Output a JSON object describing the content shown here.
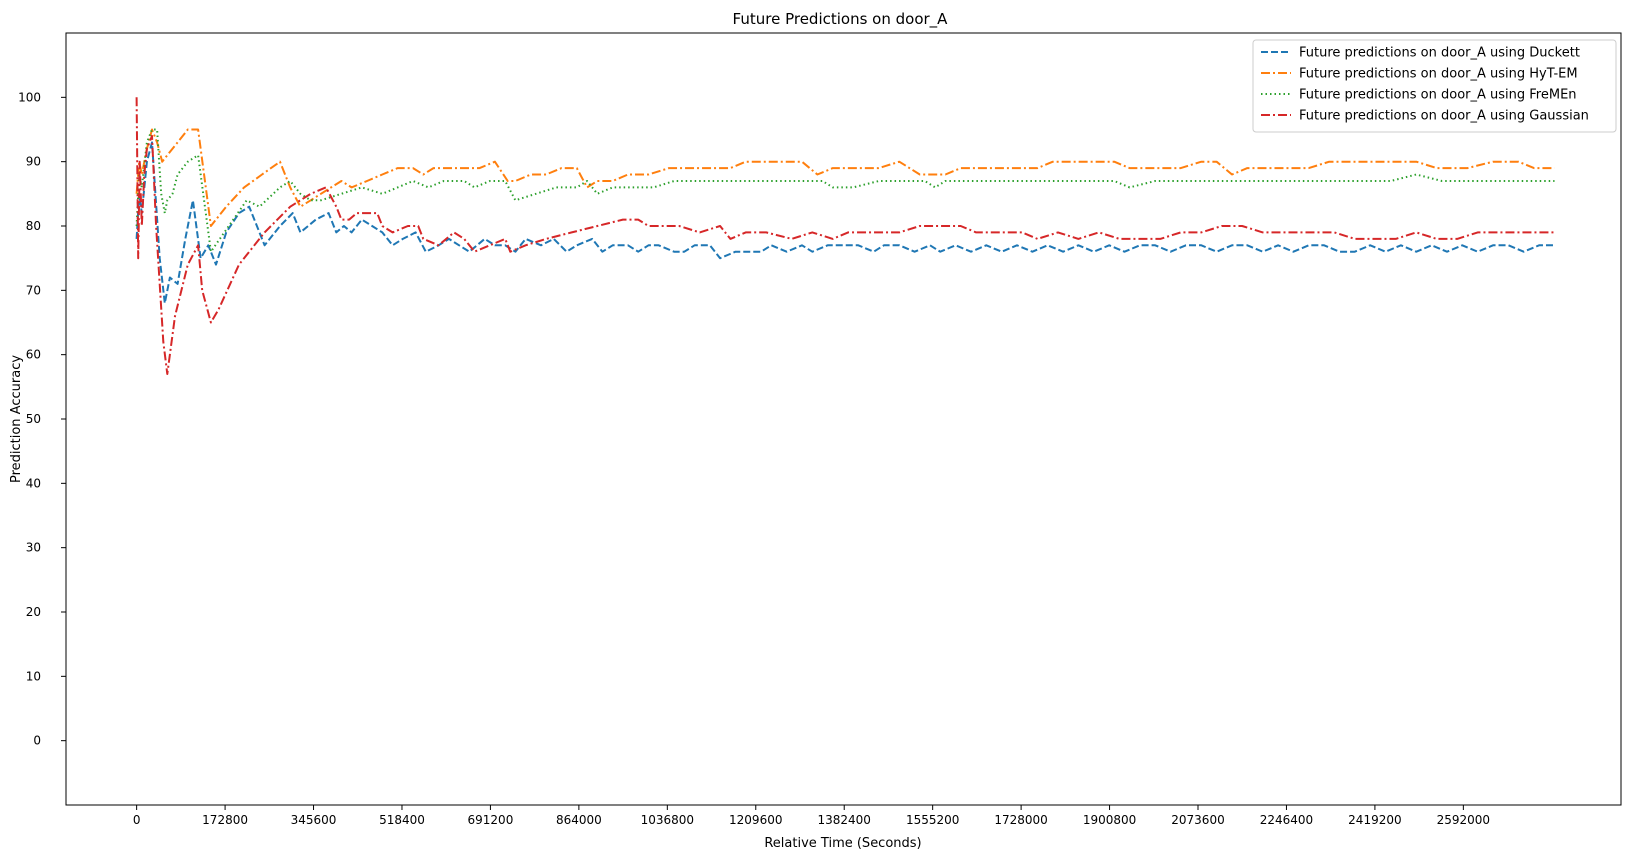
{
  "chart_data": {
    "type": "line",
    "title": "Future Predictions on door_A",
    "xlabel": "Relative Time (Seconds)",
    "ylabel": "Prediction Accuracy",
    "xlim": [
      -138000,
      2900000
    ],
    "ylim": [
      -10,
      110
    ],
    "xticks": [
      0,
      172800,
      345600,
      518400,
      691200,
      864000,
      1036800,
      1209600,
      1382400,
      1555200,
      1728000,
      1900800,
      2073600,
      2246400,
      2419200,
      2592000
    ],
    "xtick_labels": [
      "0",
      "172800",
      "345600",
      "518400",
      "691200",
      "864000",
      "1036800",
      "1209600",
      "1382400",
      "1555200",
      "1728000",
      "1900800",
      "2073600",
      "2246400",
      "2419200",
      "2592000"
    ],
    "yticks": [
      0,
      10,
      20,
      30,
      40,
      50,
      60,
      70,
      80,
      90,
      100
    ],
    "ytick_labels": [
      "0",
      "10",
      "20",
      "30",
      "40",
      "50",
      "60",
      "70",
      "80",
      "90",
      "100"
    ],
    "grid": false,
    "legend_position": "top-right",
    "series": [
      {
        "name": "Future predictions on door_A using Duckett",
        "color": "#1f77b4",
        "dash": "dashed",
        "x": [
          0,
          5000,
          10000,
          20000,
          30000,
          45000,
          55000,
          65000,
          80000,
          95000,
          110000,
          125000,
          140000,
          155000,
          175000,
          200000,
          220000,
          250000,
          280000,
          305000,
          320000,
          350000,
          375000,
          390000,
          405000,
          420000,
          440000,
          460000,
          480000,
          500000,
          520000,
          545000,
          565000,
          590000,
          610000,
          630000,
          650000,
          680000,
          700000,
          720000,
          740000,
          760000,
          790000,
          815000,
          840000,
          860000,
          890000,
          910000,
          930000,
          960000,
          980000,
          1000000,
          1020000,
          1050000,
          1070000,
          1090000,
          1120000,
          1140000,
          1170000,
          1190000,
          1220000,
          1240000,
          1270000,
          1300000,
          1320000,
          1350000,
          1380000,
          1410000,
          1440000,
          1460000,
          1490000,
          1520000,
          1550000,
          1570000,
          1600000,
          1630000,
          1660000,
          1690000,
          1720000,
          1750000,
          1780000,
          1810000,
          1840000,
          1870000,
          1900000,
          1930000,
          1960000,
          1990000,
          2020000,
          2050000,
          2080000,
          2110000,
          2140000,
          2170000,
          2200000,
          2230000,
          2260000,
          2290000,
          2320000,
          2350000,
          2380000,
          2410000,
          2440000,
          2470000,
          2500000,
          2530000,
          2560000,
          2590000,
          2620000,
          2650000,
          2680000,
          2710000,
          2740000,
          2770000
        ],
        "y": [
          78,
          85,
          82,
          90,
          93,
          75,
          68,
          72,
          71,
          78,
          84,
          75,
          77,
          74,
          79,
          82,
          83,
          77,
          80,
          82,
          79,
          81,
          82,
          79,
          80,
          79,
          81,
          80,
          79,
          77,
          78,
          79,
          76,
          77,
          78,
          77,
          76,
          78,
          77,
          77,
          76,
          78,
          77,
          78,
          76,
          77,
          78,
          76,
          77,
          77,
          76,
          77,
          77,
          76,
          76,
          77,
          77,
          75,
          76,
          76,
          76,
          77,
          76,
          77,
          76,
          77,
          77,
          77,
          76,
          77,
          77,
          76,
          77,
          76,
          77,
          76,
          77,
          76,
          77,
          76,
          77,
          76,
          77,
          76,
          77,
          76,
          77,
          77,
          76,
          77,
          77,
          76,
          77,
          77,
          76,
          77,
          76,
          77,
          77,
          76,
          76,
          77,
          76,
          77,
          76,
          77,
          76,
          77,
          76,
          77,
          77,
          76,
          77,
          77
        ]
      },
      {
        "name": "Future predictions on door_A using HyT-EM",
        "color": "#ff7f0e",
        "dash": "dashdot",
        "x": [
          0,
          5000,
          10000,
          20000,
          30000,
          40000,
          50000,
          60000,
          80000,
          100000,
          120000,
          145000,
          175000,
          210000,
          245000,
          280000,
          300000,
          320000,
          340000,
          360000,
          380000,
          400000,
          420000,
          450000,
          480000,
          510000,
          540000,
          560000,
          580000,
          610000,
          640000,
          670000,
          700000,
          725000,
          740000,
          770000,
          800000,
          830000,
          860000,
          880000,
          900000,
          930000,
          960000,
          1000000,
          1040000,
          1080000,
          1120000,
          1160000,
          1190000,
          1220000,
          1260000,
          1300000,
          1330000,
          1360000,
          1380000,
          1410000,
          1450000,
          1490000,
          1530000,
          1560000,
          1580000,
          1610000,
          1650000,
          1690000,
          1730000,
          1760000,
          1790000,
          1830000,
          1870000,
          1910000,
          1940000,
          1970000,
          2000000,
          2040000,
          2080000,
          2110000,
          2140000,
          2170000,
          2210000,
          2250000,
          2290000,
          2330000,
          2370000,
          2410000,
          2450000,
          2500000,
          2540000,
          2570000,
          2600000,
          2650000,
          2700000,
          2730000,
          2750000,
          2770000
        ],
        "y": [
          85,
          90,
          88,
          92,
          95,
          93,
          90,
          91,
          93,
          95,
          95,
          80,
          83,
          86,
          88,
          90,
          86,
          83,
          84,
          85,
          86,
          87,
          86,
          87,
          88,
          89,
          89,
          88,
          89,
          89,
          89,
          89,
          90,
          87,
          87,
          88,
          88,
          89,
          89,
          86,
          87,
          87,
          88,
          88,
          89,
          89,
          89,
          89,
          90,
          90,
          90,
          90,
          88,
          89,
          89,
          89,
          89,
          90,
          88,
          88,
          88,
          89,
          89,
          89,
          89,
          89,
          90,
          90,
          90,
          90,
          89,
          89,
          89,
          89,
          90,
          90,
          88,
          89,
          89,
          89,
          89,
          90,
          90,
          90,
          90,
          90,
          89,
          89,
          89,
          90,
          90,
          89,
          89,
          89
        ]
      },
      {
        "name": "Future predictions on door_A using FreMEn",
        "color": "#2ca02c",
        "dash": "dotted",
        "x": [
          0,
          5000,
          10000,
          20000,
          30000,
          40000,
          48000,
          55000,
          60000,
          70000,
          80000,
          100000,
          120000,
          145000,
          180000,
          215000,
          240000,
          280000,
          300000,
          320000,
          340000,
          360000,
          400000,
          440000,
          480000,
          510000,
          540000,
          570000,
          600000,
          640000,
          660000,
          690000,
          720000,
          740000,
          780000,
          820000,
          860000,
          880000,
          900000,
          930000,
          970000,
          1010000,
          1050000,
          1090000,
          1130000,
          1170000,
          1220000,
          1260000,
          1300000,
          1340000,
          1360000,
          1400000,
          1450000,
          1500000,
          1540000,
          1560000,
          1580000,
          1620000,
          1670000,
          1720000,
          1770000,
          1820000,
          1870000,
          1910000,
          1940000,
          1990000,
          2040000,
          2080000,
          2120000,
          2150000,
          2200000,
          2250000,
          2300000,
          2350000,
          2400000,
          2450000,
          2500000,
          2550000,
          2580000,
          2620000,
          2680000,
          2730000,
          2770000
        ],
        "y": [
          80,
          88,
          86,
          93,
          95,
          95,
          85,
          82,
          84,
          85,
          88,
          90,
          91,
          76,
          80,
          84,
          83,
          86,
          87,
          85,
          84,
          84,
          85,
          86,
          85,
          86,
          87,
          86,
          87,
          87,
          86,
          87,
          87,
          84,
          85,
          86,
          86,
          87,
          85,
          86,
          86,
          86,
          87,
          87,
          87,
          87,
          87,
          87,
          87,
          87,
          86,
          86,
          87,
          87,
          87,
          86,
          87,
          87,
          87,
          87,
          87,
          87,
          87,
          87,
          86,
          87,
          87,
          87,
          87,
          87,
          87,
          87,
          87,
          87,
          87,
          87,
          88,
          87,
          87,
          87,
          87,
          87,
          87
        ]
      },
      {
        "name": "Future predictions on door_A using Gaussian",
        "color": "#d62728",
        "dash": "dashdot",
        "x": [
          0,
          3000,
          6000,
          10000,
          15000,
          20000,
          30000,
          38000,
          45000,
          52000,
          60000,
          75000,
          100000,
          120000,
          128000,
          145000,
          160000,
          200000,
          250000,
          300000,
          340000,
          370000,
          390000,
          400000,
          415000,
          430000,
          445000,
          470000,
          480000,
          500000,
          530000,
          550000,
          560000,
          590000,
          620000,
          640000,
          660000,
          690000,
          720000,
          730000,
          760000,
          800000,
          850000,
          900000,
          950000,
          980000,
          1000000,
          1040000,
          1060000,
          1100000,
          1140000,
          1160000,
          1190000,
          1230000,
          1280000,
          1320000,
          1360000,
          1390000,
          1440000,
          1490000,
          1530000,
          1580000,
          1610000,
          1640000,
          1700000,
          1730000,
          1760000,
          1800000,
          1840000,
          1880000,
          1920000,
          1960000,
          2000000,
          2040000,
          2080000,
          2120000,
          2160000,
          2200000,
          2250000,
          2300000,
          2340000,
          2380000,
          2420000,
          2460000,
          2500000,
          2540000,
          2580000,
          2620000,
          2660000,
          2700000,
          2740000,
          2770000
        ],
        "y": [
          100,
          75,
          90,
          80,
          88,
          92,
          94,
          80,
          71,
          62,
          57,
          66,
          74,
          77,
          70,
          65,
          67,
          74,
          79,
          83,
          85,
          86,
          83,
          81,
          81,
          82,
          82,
          82,
          80,
          79,
          80,
          80,
          78,
          77,
          79,
          78,
          76,
          77,
          78,
          76,
          77,
          78,
          79,
          80,
          81,
          81,
          80,
          80,
          80,
          79,
          80,
          78,
          79,
          79,
          78,
          79,
          78,
          79,
          79,
          79,
          80,
          80,
          80,
          79,
          79,
          79,
          78,
          79,
          78,
          79,
          78,
          78,
          78,
          79,
          79,
          80,
          80,
          79,
          79,
          79,
          79,
          78,
          78,
          78,
          79,
          78,
          78,
          79,
          79,
          79,
          79,
          79
        ]
      }
    ]
  }
}
